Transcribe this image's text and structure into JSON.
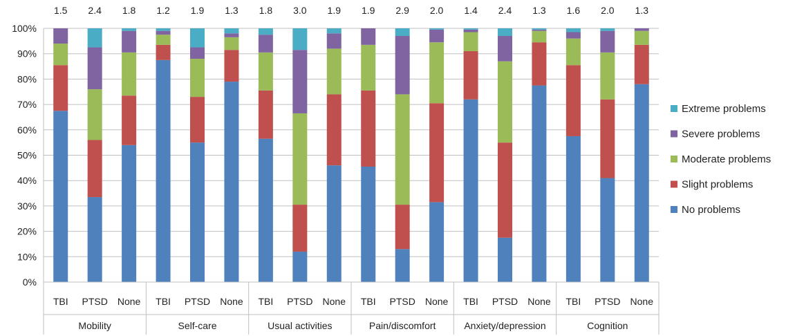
{
  "chart_data": {
    "type": "bar",
    "stacked": true,
    "groups": [
      "Mobility",
      "Self-care",
      "Usual activities",
      "Pain/discomfort",
      "Anxiety/depression",
      "Cognition"
    ],
    "subcategories": [
      "TBI",
      "PTSD",
      "None"
    ],
    "top_labels": [
      "1.5",
      "2.4",
      "1.8",
      "1.2",
      "1.9",
      "1.3",
      "1.8",
      "3.0",
      "1.9",
      "1.9",
      "2.9",
      "2.0",
      "1.4",
      "2.4",
      "1.3",
      "1.6",
      "2.0",
      "1.3"
    ],
    "y_ticks": [
      "0%",
      "10%",
      "20%",
      "30%",
      "40%",
      "50%",
      "60%",
      "70%",
      "80%",
      "90%",
      "100%"
    ],
    "ylim": [
      0,
      100
    ],
    "grid": true,
    "legend_position": "right",
    "series": [
      {
        "name": "No problems",
        "color": "#4F81BD",
        "values": [
          67.5,
          33.5,
          54,
          87.5,
          55,
          79,
          56.5,
          12,
          46,
          45.5,
          13,
          31.5,
          72,
          17.5,
          77.5,
          57.5,
          41,
          78
        ]
      },
      {
        "name": "Slight problems",
        "color": "#C0504D",
        "values": [
          18,
          22.5,
          19.5,
          6,
          18,
          12.5,
          19,
          18.5,
          28,
          30,
          17.5,
          39,
          19,
          37.5,
          17,
          28,
          31,
          15.5
        ]
      },
      {
        "name": "Moderate problems",
        "color": "#9BBB59",
        "values": [
          8.5,
          20,
          17,
          4,
          15,
          5,
          15,
          36,
          18,
          18,
          43.5,
          24,
          7.5,
          32,
          4.5,
          10.5,
          18.5,
          5.5
        ]
      },
      {
        "name": "Severe problems",
        "color": "#8064A2",
        "values": [
          6,
          16.5,
          8.5,
          1.5,
          4.5,
          1.5,
          7,
          25,
          6,
          6.5,
          23,
          5,
          1,
          10,
          0.5,
          2.5,
          8.5,
          1
        ]
      },
      {
        "name": "Extreme problems",
        "color": "#4BACC6",
        "values": [
          0,
          7.5,
          1,
          1,
          7.5,
          2,
          2.5,
          8.5,
          2,
          0,
          3,
          0.5,
          0.5,
          3,
          0.5,
          1.5,
          1,
          0
        ]
      }
    ],
    "legend_order": [
      "Extreme problems",
      "Severe problems",
      "Moderate problems",
      "Slight problems",
      "No problems"
    ]
  }
}
